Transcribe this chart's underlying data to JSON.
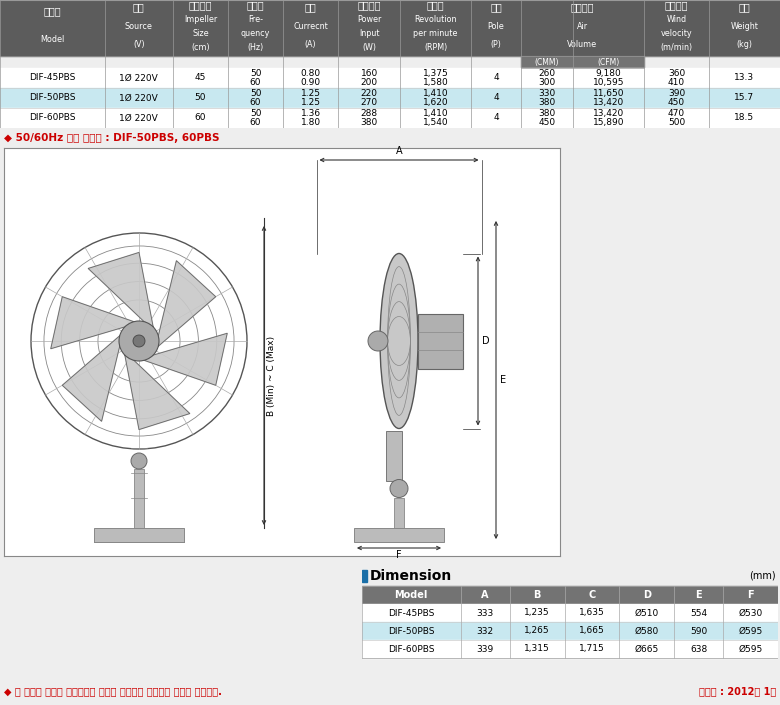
{
  "header_bg": "#5c5c5c",
  "header_text_color": "#ffffff",
  "subheader_bg": "#737373",
  "row_bg_white": "#ffffff",
  "row_bg_highlight": "#c8e8f0",
  "border_color": "#aaaaaa",
  "outer_bg": "#eeeeee",
  "rows": [
    {
      "model": "DIF-45PBS",
      "source": "1Ø 220V",
      "size": "45",
      "hz": [
        "50",
        "60"
      ],
      "current": [
        "0.80",
        "0.90"
      ],
      "power": [
        "160",
        "200"
      ],
      "rpm": [
        "1,375",
        "1,580"
      ],
      "pole": "4",
      "cmm": [
        "260",
        "300"
      ],
      "cfm": [
        "9,180",
        "10,595"
      ],
      "wind": [
        "360",
        "410"
      ],
      "weight": "13.3",
      "highlight": false
    },
    {
      "model": "DIF-50PBS",
      "source": "1Ø 220V",
      "size": "50",
      "hz": [
        "50",
        "60"
      ],
      "current": [
        "1.25",
        "1.25"
      ],
      "power": [
        "220",
        "270"
      ],
      "rpm": [
        "1,410",
        "1,620"
      ],
      "pole": "4",
      "cmm": [
        "330",
        "380"
      ],
      "cfm": [
        "11,650",
        "13,420"
      ],
      "wind": [
        "390",
        "450"
      ],
      "weight": "15.7",
      "highlight": true
    },
    {
      "model": "DIF-60PBS",
      "source": "1Ø 220V",
      "size": "60",
      "hz": [
        "50",
        "60"
      ],
      "current": [
        "1.36",
        "1.80"
      ],
      "power": [
        "288",
        "380"
      ],
      "rpm": [
        "1,410",
        "1,540"
      ],
      "pole": "4",
      "cmm": [
        "380",
        "450"
      ],
      "cfm": [
        "13,420",
        "15,890"
      ],
      "wind": [
        "470",
        "500"
      ],
      "weight": "18.5",
      "highlight": false
    }
  ],
  "note_text": "◆ 50/60Hz 별도 생산품 : DIF-50PBS, 60PBS",
  "note_color": "#cc0000",
  "dim_title": "Dimension",
  "dim_unit": "(mm)",
  "dim_headers": [
    "Model",
    "A",
    "B",
    "C",
    "D",
    "E",
    "F"
  ],
  "dim_rows": [
    {
      "model": "DIF-45PBS",
      "a": "333",
      "b": "1,235",
      "c": "1,635",
      "d": "Ø510",
      "e": "554",
      "f": "Ø530",
      "highlight": false
    },
    {
      "model": "DIF-50PBS",
      "a": "332",
      "b": "1,265",
      "c": "1,665",
      "d": "Ø580",
      "e": "590",
      "f": "Ø595",
      "highlight": true
    },
    {
      "model": "DIF-60PBS",
      "a": "339",
      "b": "1,315",
      "c": "1,715",
      "d": "Ø665",
      "e": "638",
      "f": "Ø595",
      "highlight": false
    }
  ],
  "footer_note": "◆ 본 제품의 사양은 품질개선을 위하여 예고없이 변경되는 경우가 있습니다.",
  "footer_date": "제작일 : 2012년 1월",
  "footer_color": "#cc0000",
  "col_headers_line1": [
    "제품명",
    "전원",
    "날개크기",
    "주파수",
    "전류",
    "소비전력",
    "회전수",
    "극수",
    "최대풍량",
    "최대풍속",
    "중량"
  ],
  "col_headers_line2": [
    "Model",
    "Source",
    "Impeller",
    "Fre-",
    "Currecnt",
    "Power",
    "Revolution",
    "Pole",
    "Air",
    "Wind",
    "Weight"
  ],
  "col_headers_line3": [
    "",
    "",
    "Size",
    "quency",
    "",
    "Input",
    "per minute",
    "",
    "Volume",
    "velocity",
    ""
  ],
  "col_headers_line4": [
    "",
    "(V)",
    "(cm)",
    "(Hz)",
    "(A)",
    "(W)",
    "(RPM)",
    "(P)",
    "",
    "(m/min)",
    "(kg)"
  ]
}
